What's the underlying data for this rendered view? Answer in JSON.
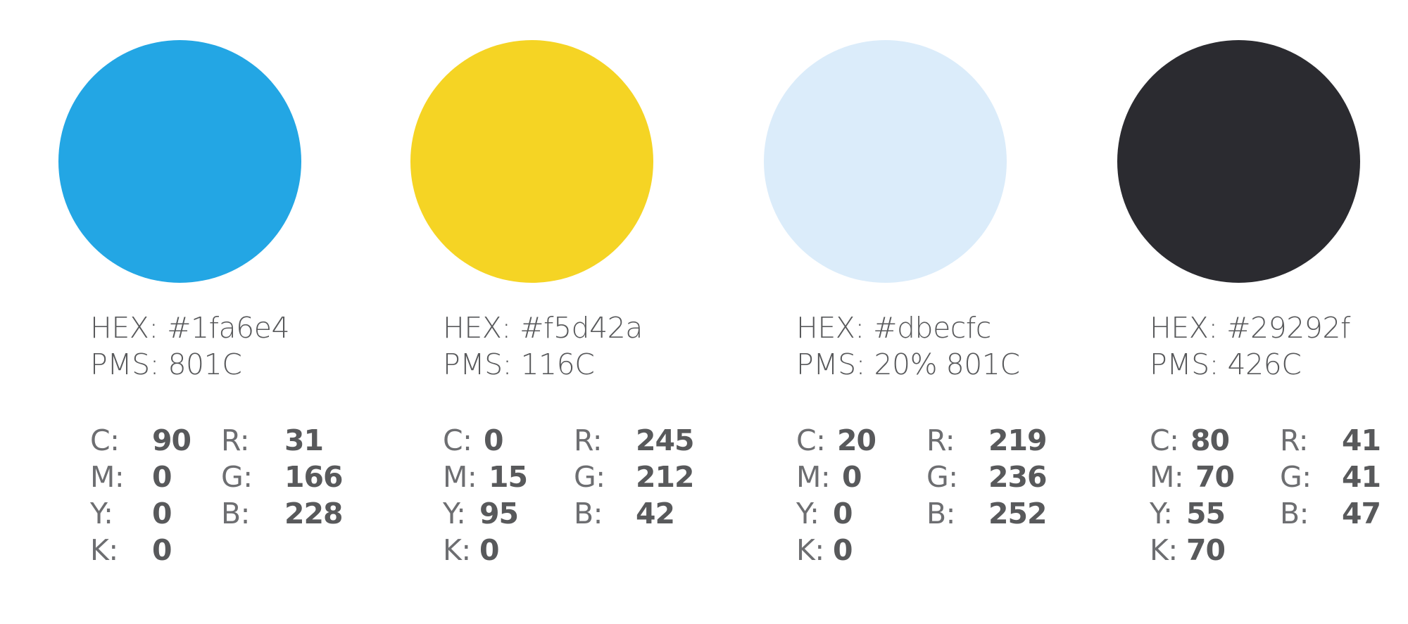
{
  "swatches": [
    {
      "color": "#23a6e4",
      "hex_label": "HEX: #1fa6e4",
      "pms_label": "PMS: 801C",
      "c_label": "C:",
      "c": "90",
      "m_label": "M:",
      "m": "0",
      "y_label": "Y:",
      "y": "0",
      "k_label": "K:",
      "k": "0",
      "r_label": "R:",
      "r": "31",
      "g_label": "G:",
      "g": "166",
      "b_label": "B:",
      "b": "228"
    },
    {
      "color": "#f5d424",
      "hex_label": "HEX: #f5d42a",
      "pms_label": "PMS: 116C",
      "c_label": "C:",
      "c": "0",
      "m_label": "M:",
      "m": "15",
      "y_label": "Y:",
      "y": "95",
      "k_label": "K:",
      "k": "0",
      "r_label": "R:",
      "r": "245",
      "g_label": "G:",
      "g": "212",
      "b_label": "B:",
      "b": "42"
    },
    {
      "color": "#dbecfa",
      "hex_label": "HEX: #dbecfc",
      "pms_label": "PMS: 20% 801C",
      "c_label": "C:",
      "c": "20",
      "m_label": "M:",
      "m": "0",
      "y_label": "Y:",
      "y": "0",
      "k_label": "K:",
      "k": "0",
      "r_label": "R:",
      "r": "219",
      "g_label": "G:",
      "g": "236",
      "b_label": "B:",
      "b": "252"
    },
    {
      "color": "#2b2b30",
      "hex_label": "HEX: #29292f",
      "pms_label": "PMS: 426C",
      "c_label": "C:",
      "c": "80",
      "m_label": "M:",
      "m": "70",
      "y_label": "Y:",
      "y": "55",
      "k_label": "K:",
      "k": "70",
      "r_label": "R:",
      "r": "41",
      "g_label": "G:",
      "g": "41",
      "b_label": "B:",
      "b": "47"
    }
  ]
}
